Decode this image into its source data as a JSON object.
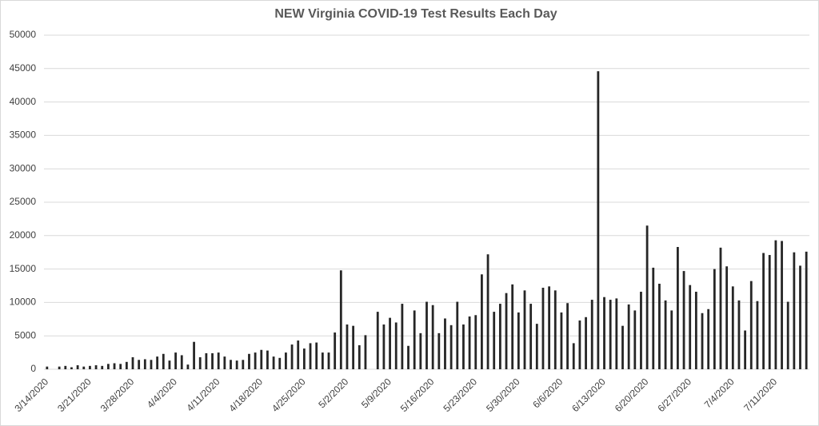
{
  "chart_data": {
    "type": "bar",
    "title": "NEW Virginia COVID-19 Test Results Each Day",
    "categories": [
      "3/14/2020",
      null,
      null,
      null,
      null,
      null,
      null,
      "3/21/2020",
      null,
      null,
      null,
      null,
      null,
      null,
      "3/28/2020",
      null,
      null,
      null,
      null,
      null,
      null,
      "4/4/2020",
      null,
      null,
      null,
      null,
      null,
      null,
      "4/11/2020",
      null,
      null,
      null,
      null,
      null,
      null,
      "4/18/2020",
      null,
      null,
      null,
      null,
      null,
      null,
      "4/25/2020",
      null,
      null,
      null,
      null,
      null,
      null,
      "5/2/2020",
      null,
      null,
      null,
      null,
      null,
      null,
      "5/9/2020",
      null,
      null,
      null,
      null,
      null,
      null,
      "5/16/2020",
      null,
      null,
      null,
      null,
      null,
      null,
      "5/23/2020",
      null,
      null,
      null,
      null,
      null,
      null,
      "5/30/2020",
      null,
      null,
      null,
      null,
      null,
      null,
      "6/6/2020",
      null,
      null,
      null,
      null,
      null,
      null,
      "6/13/2020",
      null,
      null,
      null,
      null,
      null,
      null,
      "6/20/2020",
      null,
      null,
      null,
      null,
      null,
      null,
      "6/27/2020",
      null,
      null,
      null,
      null,
      null,
      null,
      "7/4/2020",
      null,
      null,
      null,
      null,
      null,
      null,
      "7/11/2020",
      null,
      null,
      null,
      null,
      null
    ],
    "values": [
      400,
      0,
      400,
      500,
      300,
      600,
      400,
      500,
      600,
      500,
      800,
      900,
      800,
      1100,
      1800,
      1400,
      1500,
      1400,
      1900,
      2300,
      1300,
      2500,
      2100,
      700,
      4100,
      1800,
      2400,
      2400,
      2500,
      1900,
      1400,
      1300,
      1400,
      2300,
      2500,
      2900,
      2800,
      1900,
      1700,
      2500,
      3700,
      4300,
      3100,
      3900,
      4000,
      2500,
      2500,
      5500,
      14800,
      6700,
      6500,
      3600,
      5100,
      0,
      8600,
      6700,
      7700,
      7000,
      9800,
      3500,
      8800,
      5400,
      10100,
      9600,
      5400,
      7600,
      6600,
      10100,
      6700,
      7900,
      8100,
      14200,
      17200,
      8600,
      9800,
      11400,
      12700,
      8500,
      11800,
      9800,
      6800,
      12200,
      12400,
      11800,
      8500,
      9900,
      3900,
      7300,
      7800,
      10400,
      44600,
      10800,
      10400,
      10600,
      6500,
      9700,
      8800,
      11600,
      21500,
      15200,
      12800,
      10300,
      8800,
      18300,
      14700,
      12600,
      11600,
      8400,
      9000,
      15000,
      18200,
      15400,
      12400,
      10300,
      5800,
      13200,
      10200,
      17400,
      17100,
      19300,
      19200,
      10100,
      17500,
      15500,
      17600
    ],
    "color": "#262626",
    "ylim": [
      0,
      50000
    ],
    "yticks": [
      0,
      5000,
      10000,
      15000,
      20000,
      25000,
      30000,
      35000,
      40000,
      45000,
      50000
    ],
    "grid": true
  }
}
